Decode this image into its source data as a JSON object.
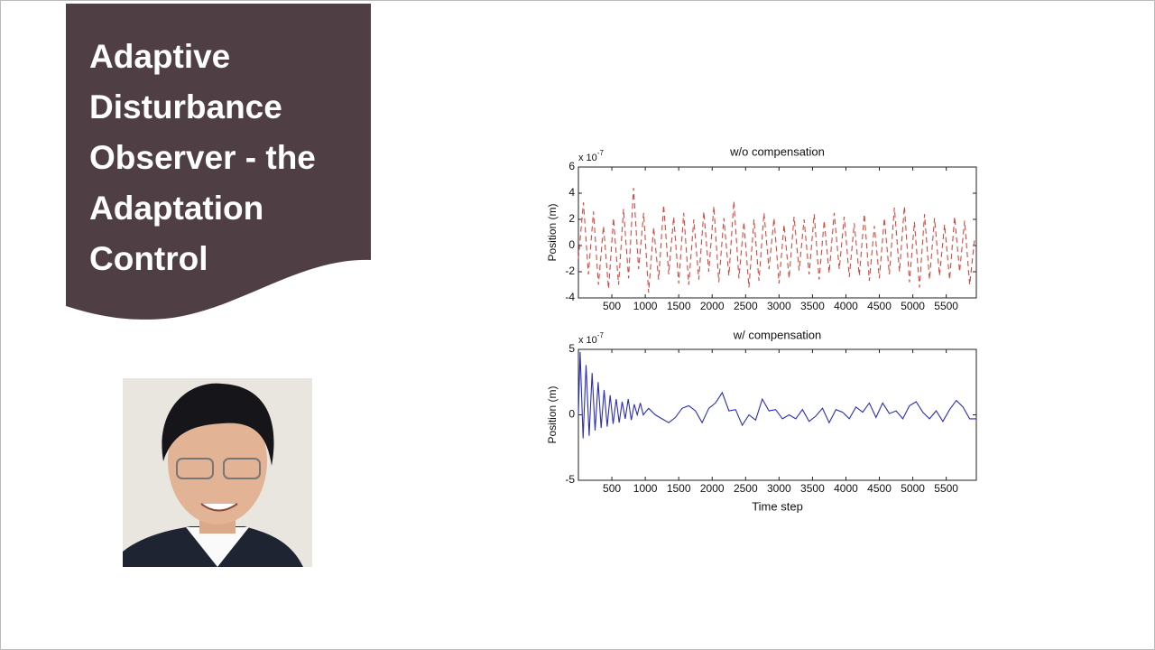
{
  "slide": {
    "title_lines": [
      "Adaptive",
      "Disturbance",
      "Observer - the",
      "Adaptation",
      "Control"
    ]
  },
  "chart_data": [
    {
      "type": "line",
      "title": "w/o compensation",
      "ylabel": "Position (m)",
      "y_scale_base": "x 10",
      "y_scale_exponent": "-7",
      "xlim": [
        0,
        5950
      ],
      "ylim": [
        -4,
        6
      ],
      "xticks": [
        500,
        1000,
        1500,
        2000,
        2500,
        3000,
        3500,
        4000,
        4500,
        5000,
        5500
      ],
      "yticks": [
        -4,
        -2,
        0,
        2,
        4,
        6
      ],
      "x": [
        0,
        75,
        150,
        225,
        300,
        375,
        450,
        525,
        600,
        675,
        750,
        825,
        900,
        975,
        1050,
        1125,
        1200,
        1275,
        1350,
        1425,
        1500,
        1575,
        1650,
        1725,
        1800,
        1875,
        1950,
        2025,
        2100,
        2175,
        2250,
        2325,
        2400,
        2475,
        2550,
        2625,
        2700,
        2775,
        2850,
        2925,
        3000,
        3075,
        3150,
        3225,
        3300,
        3375,
        3450,
        3525,
        3600,
        3675,
        3750,
        3825,
        3900,
        3975,
        4050,
        4125,
        4200,
        4275,
        4350,
        4425,
        4500,
        4575,
        4650,
        4725,
        4800,
        4875,
        4950,
        5025,
        5100,
        5175,
        5250,
        5325,
        5400,
        5475,
        5550,
        5625,
        5700,
        5775,
        5850,
        5925
      ],
      "series": [
        {
          "color": "#d9483f",
          "linestyle": "dashed",
          "values": [
            -1.0,
            3.3,
            -2.2,
            2.6,
            -3.0,
            1.5,
            -3.3,
            2.1,
            -3.0,
            2.8,
            -2.5,
            4.4,
            -1.8,
            2.5,
            -3.6,
            1.4,
            -2.6,
            3.1,
            -2.2,
            2.2,
            -2.9,
            2.5,
            -3.0,
            2.0,
            -2.6,
            2.6,
            -2.0,
            3.0,
            -2.8,
            2.1,
            -2.3,
            3.4,
            -2.5,
            1.8,
            -3.2,
            2.0,
            -2.7,
            2.5,
            -1.8,
            2.1,
            -2.9,
            1.6,
            -2.5,
            2.2,
            -1.9,
            2.0,
            -2.2,
            2.4,
            -2.6,
            1.9,
            -2.1,
            2.5,
            -1.8,
            2.2,
            -2.4,
            1.7,
            -2.3,
            2.4,
            -2.7,
            1.5,
            -2.5,
            2.1,
            -2.2,
            2.9,
            -2.0,
            3.0,
            -2.8,
            1.8,
            -3.2,
            2.4,
            -2.6,
            2.1,
            -2.3,
            1.6,
            -2.6,
            2.2,
            -2.0,
            1.9,
            -3.0,
            0.5
          ]
        }
      ]
    },
    {
      "type": "line",
      "title": "w/ compensation",
      "ylabel": "Position (m)",
      "xlabel": "Time step",
      "y_scale_base": "x 10",
      "y_scale_exponent": "-7",
      "xlim": [
        0,
        5950
      ],
      "ylim": [
        -5,
        5
      ],
      "xticks": [
        500,
        1000,
        1500,
        2000,
        2500,
        3000,
        3500,
        4000,
        4500,
        5000,
        5500
      ],
      "yticks": [
        -5,
        0,
        5
      ],
      "x": [
        0,
        25,
        70,
        115,
        160,
        205,
        250,
        295,
        340,
        385,
        430,
        475,
        520,
        565,
        610,
        655,
        700,
        745,
        790,
        835,
        880,
        925,
        970,
        1050,
        1150,
        1250,
        1350,
        1450,
        1550,
        1650,
        1750,
        1850,
        1950,
        2050,
        2150,
        2250,
        2350,
        2450,
        2550,
        2650,
        2750,
        2850,
        2950,
        3050,
        3150,
        3250,
        3350,
        3450,
        3550,
        3650,
        3750,
        3850,
        3950,
        4050,
        4150,
        4250,
        4350,
        4450,
        4550,
        4650,
        4750,
        4850,
        4950,
        5050,
        5150,
        5250,
        5350,
        5450,
        5550,
        5650,
        5750,
        5850,
        5950
      ],
      "series": [
        {
          "color": "#2b2fb5",
          "linestyle": "solid",
          "values": [
            0,
            4.8,
            -1.8,
            3.8,
            -1.6,
            3.2,
            -1.2,
            2.5,
            -1.0,
            1.9,
            -0.9,
            1.5,
            -0.7,
            1.2,
            -0.6,
            1.0,
            -0.3,
            1.2,
            -0.4,
            0.8,
            0.0,
            0.9,
            0.0,
            0.5,
            0.0,
            -0.3,
            -0.6,
            -0.2,
            0.5,
            0.7,
            0.3,
            -0.6,
            0.5,
            0.9,
            1.7,
            0.3,
            0.4,
            -0.8,
            0.0,
            -0.4,
            1.2,
            0.3,
            0.4,
            -0.3,
            0.0,
            -0.3,
            0.4,
            -0.5,
            -0.1,
            0.5,
            -0.6,
            0.4,
            0.2,
            -0.3,
            0.6,
            0.2,
            0.9,
            -0.2,
            0.9,
            0.1,
            0.3,
            -0.3,
            0.7,
            1.0,
            0.2,
            -0.3,
            0.3,
            -0.5,
            0.4,
            1.1,
            0.6,
            -0.3,
            -0.3
          ]
        }
      ]
    }
  ]
}
